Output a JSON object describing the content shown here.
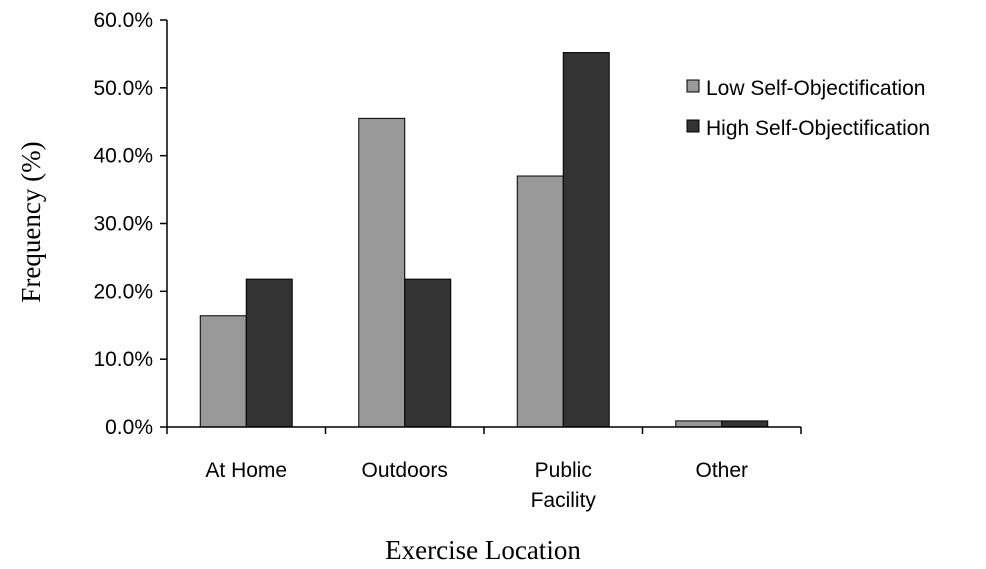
{
  "chart_data": {
    "type": "bar",
    "title": "",
    "xlabel": "Exercise Location",
    "ylabel": "Frequency (%)",
    "ylim": [
      0,
      60
    ],
    "yticks": [
      "0.0%",
      "10.0%",
      "20.0%",
      "30.0%",
      "40.0%",
      "50.0%",
      "60.0%"
    ],
    "categories": [
      [
        "At Home"
      ],
      [
        "Outdoors"
      ],
      [
        "Public",
        "Facility"
      ],
      [
        "Other"
      ]
    ],
    "series": [
      {
        "name": "Low Self-Objectification",
        "color": "#999999",
        "values": [
          16.4,
          45.5,
          37.0,
          0.9
        ]
      },
      {
        "name": "High Self-Objectification",
        "color": "#333333",
        "values": [
          21.8,
          21.8,
          55.2,
          0.9
        ]
      }
    ],
    "grid": false,
    "legend": "top-right"
  }
}
